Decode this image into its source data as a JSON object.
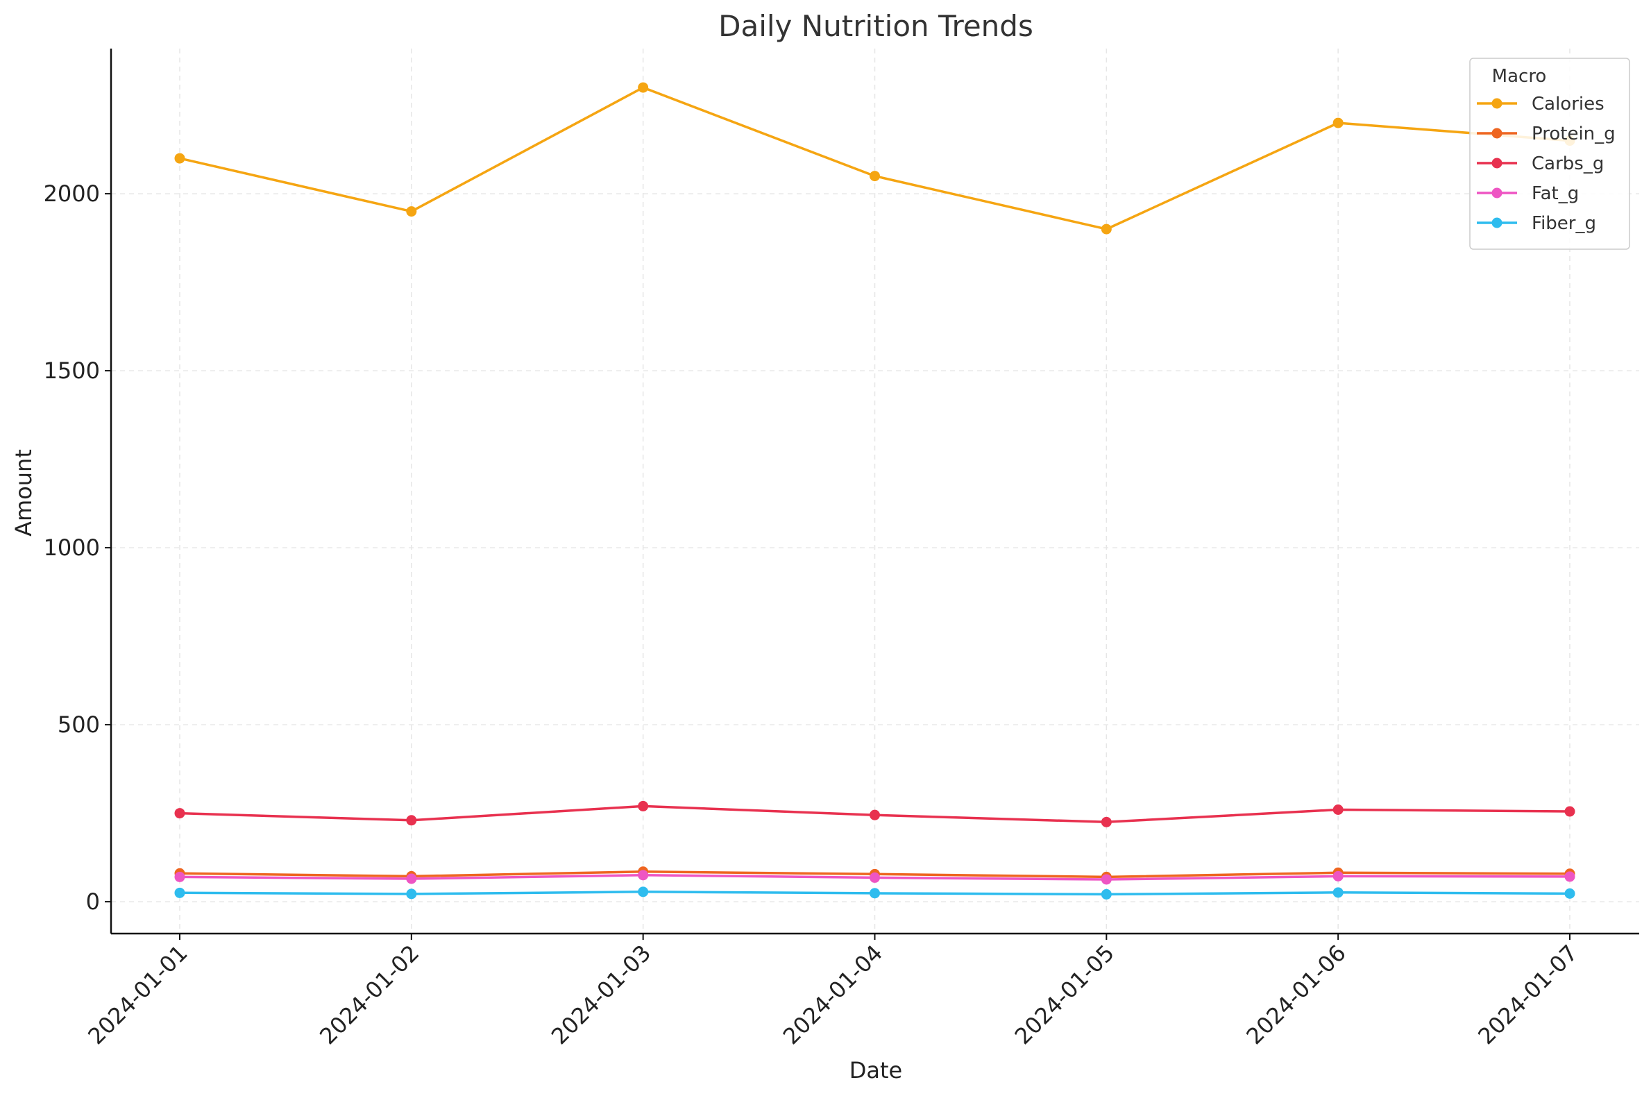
{
  "chart_data": {
    "type": "line",
    "title": "Daily Nutrition Trends",
    "xlabel": "Date",
    "ylabel": "Amount",
    "categories": [
      "2024-01-01",
      "2024-01-02",
      "2024-01-03",
      "2024-01-04",
      "2024-01-05",
      "2024-01-06",
      "2024-01-07"
    ],
    "ylim": [
      -90,
      2410
    ],
    "yticks": [
      0,
      500,
      1000,
      1500,
      2000
    ],
    "grid": true,
    "legend": {
      "title": "Macro",
      "placement": "top-right"
    },
    "series": [
      {
        "name": "Calories",
        "color": "#F5A512",
        "values": [
          2100,
          1950,
          2300,
          2050,
          1900,
          2200,
          2150
        ]
      },
      {
        "name": "Protein_g",
        "color": "#EE6520",
        "values": [
          80,
          72,
          85,
          78,
          70,
          82,
          79
        ]
      },
      {
        "name": "Carbs_g",
        "color": "#E8314F",
        "values": [
          250,
          230,
          270,
          245,
          225,
          260,
          255
        ]
      },
      {
        "name": "Fat_g",
        "color": "#EE55C3",
        "values": [
          70,
          65,
          75,
          68,
          63,
          72,
          71
        ]
      },
      {
        "name": "Fiber_g",
        "color": "#2EBCEE",
        "values": [
          25,
          22,
          28,
          24,
          21,
          26,
          23
        ]
      }
    ]
  }
}
